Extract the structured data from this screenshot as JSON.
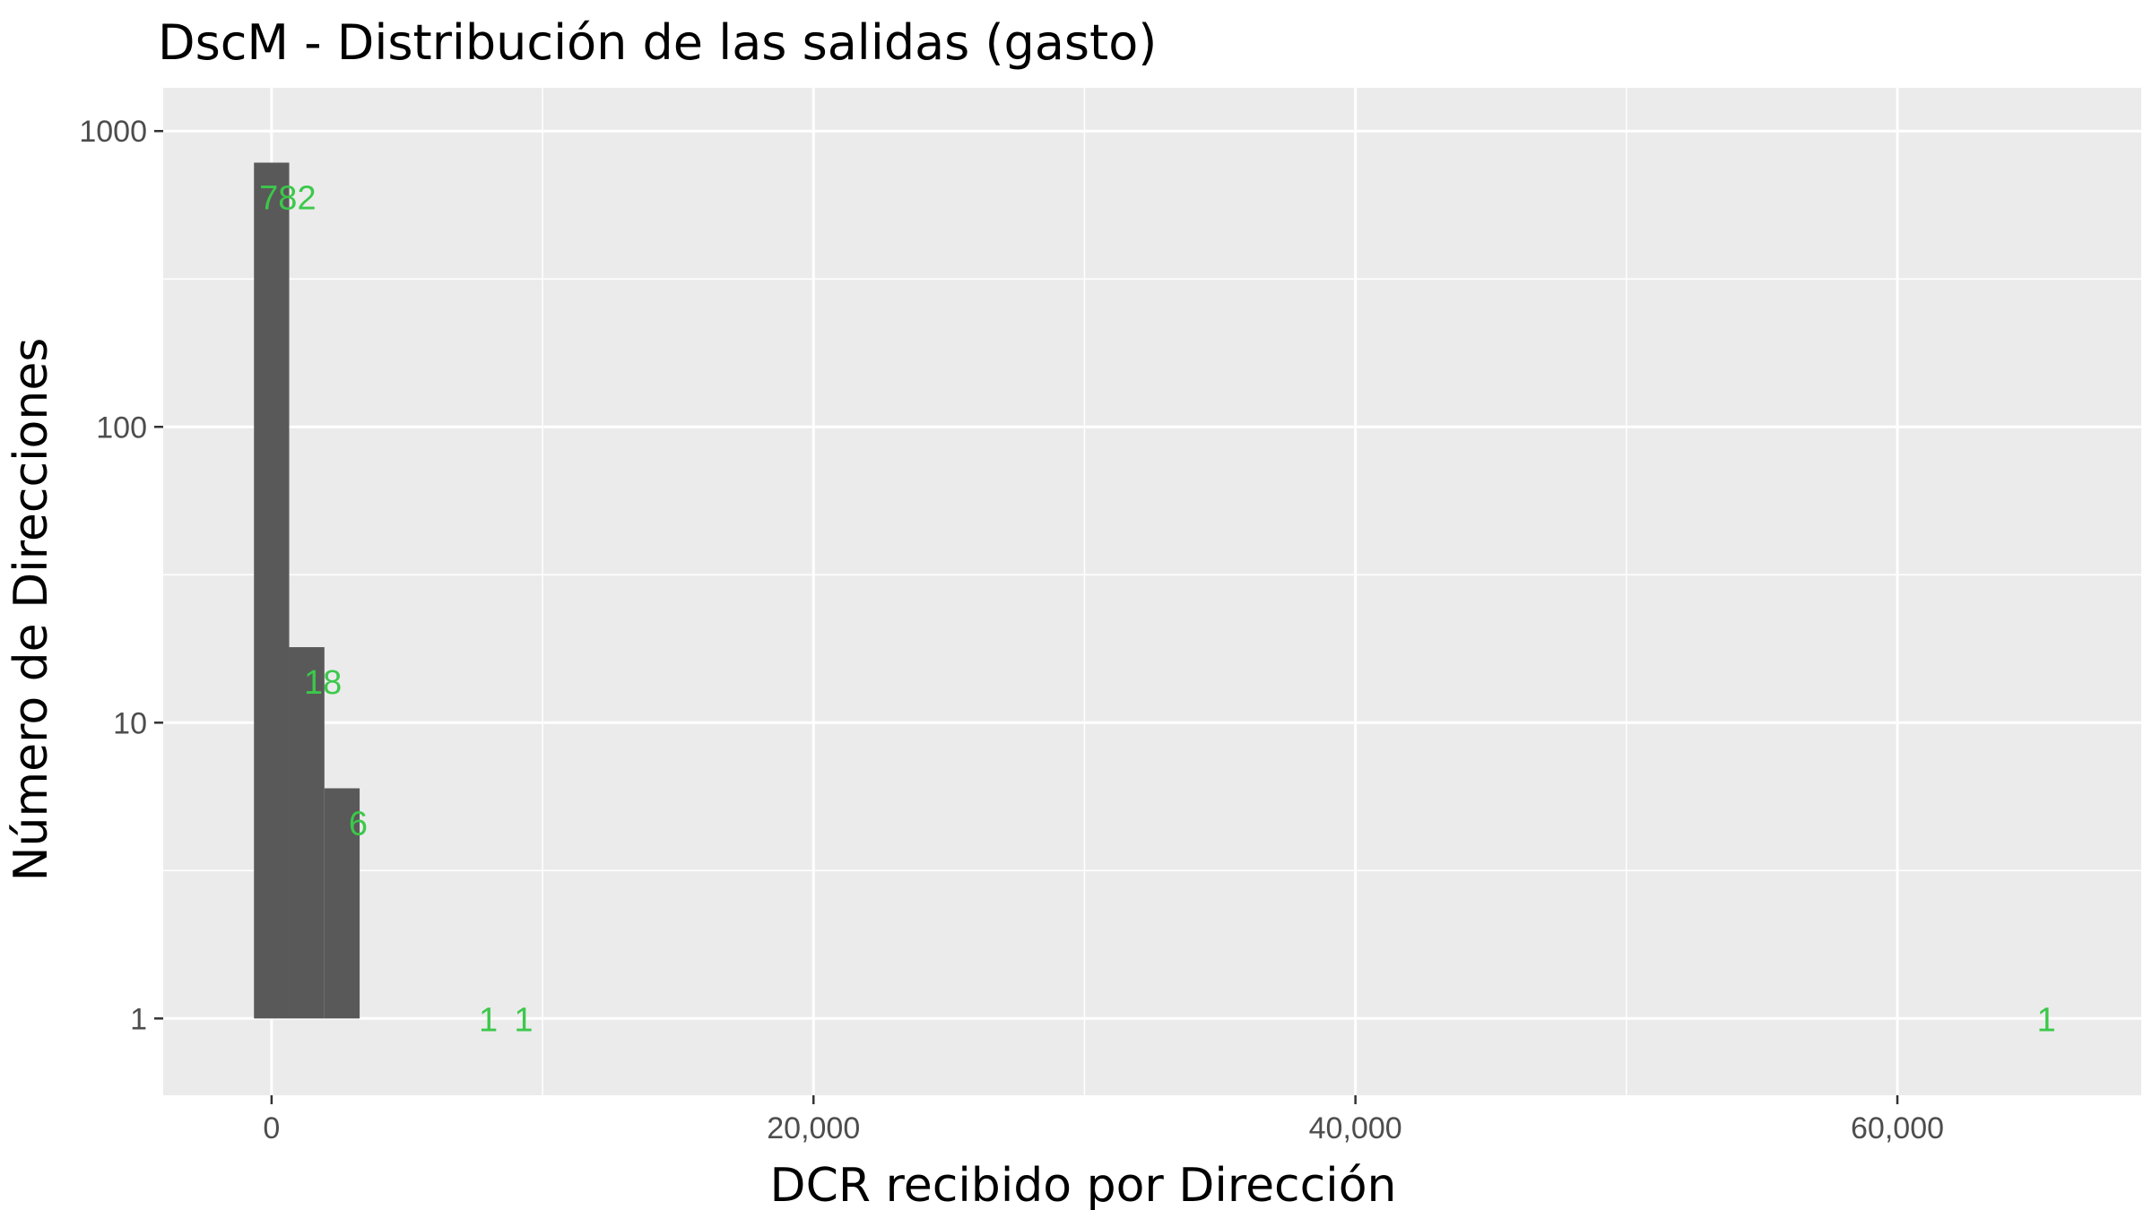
{
  "chart_data": {
    "type": "bar",
    "title": "DscM - Distribución de las salidas (gasto)",
    "xlabel": "DCR recibido por Dirección",
    "ylabel": "Número de Direcciones",
    "y_scale": "log10",
    "xlim": [
      -4000,
      69000
    ],
    "ylim": [
      0.55,
      1400
    ],
    "x_ticks": [
      0,
      20000,
      40000,
      60000
    ],
    "x_tick_labels": [
      "0",
      "20,000",
      "40,000",
      "60,000"
    ],
    "y_ticks": [
      1,
      10,
      100,
      1000
    ],
    "y_tick_labels": [
      "1",
      "10",
      "100",
      "1000"
    ],
    "x_minor_ticks": [
      10000,
      30000,
      50000
    ],
    "bin_width": 1300,
    "bins": [
      {
        "center": 0,
        "count": 782,
        "label": "782"
      },
      {
        "center": 1300,
        "count": 18,
        "label": "18"
      },
      {
        "center": 2600,
        "count": 6,
        "label": "6"
      },
      {
        "center": 8000,
        "count": 1,
        "label": "1"
      },
      {
        "center": 9300,
        "count": 1,
        "label": "1"
      },
      {
        "center": 65500,
        "count": 1,
        "label": "1"
      }
    ],
    "grid": true,
    "colors": {
      "panel": "#ebebeb",
      "grid": "#ffffff",
      "bar": "#595959",
      "label": "#3cc84b",
      "tick": "#4d4d4d"
    }
  }
}
